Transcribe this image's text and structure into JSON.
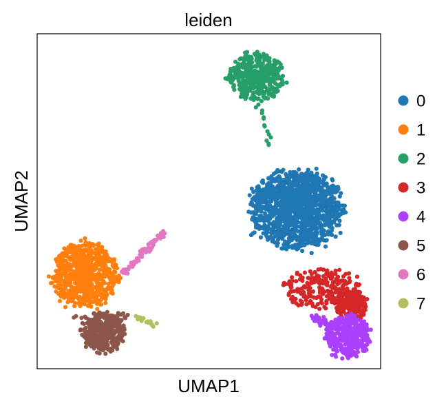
{
  "chart_data": {
    "type": "scatter",
    "title": "leiden",
    "xlabel": "UMAP1",
    "ylabel": "UMAP2",
    "xlim": [
      0,
      100
    ],
    "ylim": [
      0,
      100
    ],
    "ticks": false,
    "grid": false,
    "legend_position": "right",
    "series": [
      {
        "name": "0",
        "color": "#1f77b4",
        "point_count": 1300,
        "clusters": [
          {
            "center": [
              75.4,
              47.6
            ],
            "radius": [
              13.6,
              12.1
            ]
          }
        ]
      },
      {
        "name": "1",
        "color": "#ff7f0e",
        "point_count": 750,
        "clusters": [
          {
            "center": [
              13.9,
              28.4
            ],
            "radius": [
              9.6,
              10.1
            ]
          }
        ]
      },
      {
        "name": "2",
        "color": "#279e68",
        "point_count": 420,
        "clusters": [
          {
            "center": [
              63.8,
              87.2
            ],
            "radius": [
              8.4,
              7.2
            ]
          }
        ],
        "trail": {
          "from": [
            64.6,
            79.3
          ],
          "to": [
            67.8,
            66.6
          ],
          "points": 14
        }
      },
      {
        "name": "3",
        "color": "#d62728",
        "point_count": 460,
        "clusters": [
          {
            "center": [
              82.6,
              23.9
            ],
            "radius": [
              11.2,
              6.2
            ]
          },
          {
            "center": [
              91.4,
              19.0
            ],
            "radius": [
              4.6,
              4.6
            ]
          }
        ]
      },
      {
        "name": "4",
        "color": "#aa40fc",
        "point_count": 420,
        "clusters": [
          {
            "center": [
              90.6,
              9.8
            ],
            "radius": [
              6.4,
              6.4
            ]
          }
        ],
        "trail": {
          "from": [
            80.2,
            15.3
          ],
          "to": [
            86.0,
            12.3
          ],
          "points": 30
        }
      },
      {
        "name": "5",
        "color": "#8c564b",
        "point_count": 380,
        "clusters": [
          {
            "center": [
              19.2,
              11.0
            ],
            "radius": [
              6.4,
              6.0
            ]
          }
        ],
        "trail": {
          "from": [
            11.2,
            15.3
          ],
          "to": [
            27.4,
            15.9
          ],
          "points": 22
        }
      },
      {
        "name": "6",
        "color": "#e377c2",
        "point_count": 60,
        "trail": {
          "from": [
            25.2,
            28.7
          ],
          "to": [
            37.0,
            40.8
          ],
          "points": 60
        }
      },
      {
        "name": "7",
        "color": "#b5bd61",
        "point_count": 16,
        "trail": {
          "from": [
            29.2,
            15.3
          ],
          "to": [
            34.8,
            12.3
          ],
          "points": 16
        }
      }
    ]
  }
}
